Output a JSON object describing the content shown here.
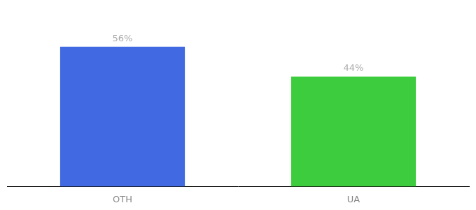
{
  "chart_data": {
    "type": "bar",
    "categories": [
      "OTH",
      "UA"
    ],
    "values": [
      56,
      44
    ],
    "value_labels": [
      "56%",
      "44%"
    ],
    "colors": [
      "#4169e1",
      "#3dcc3d"
    ],
    "ylim": [
      0,
      68
    ],
    "grid": false,
    "data_labels": true,
    "tick_labels": "x"
  }
}
